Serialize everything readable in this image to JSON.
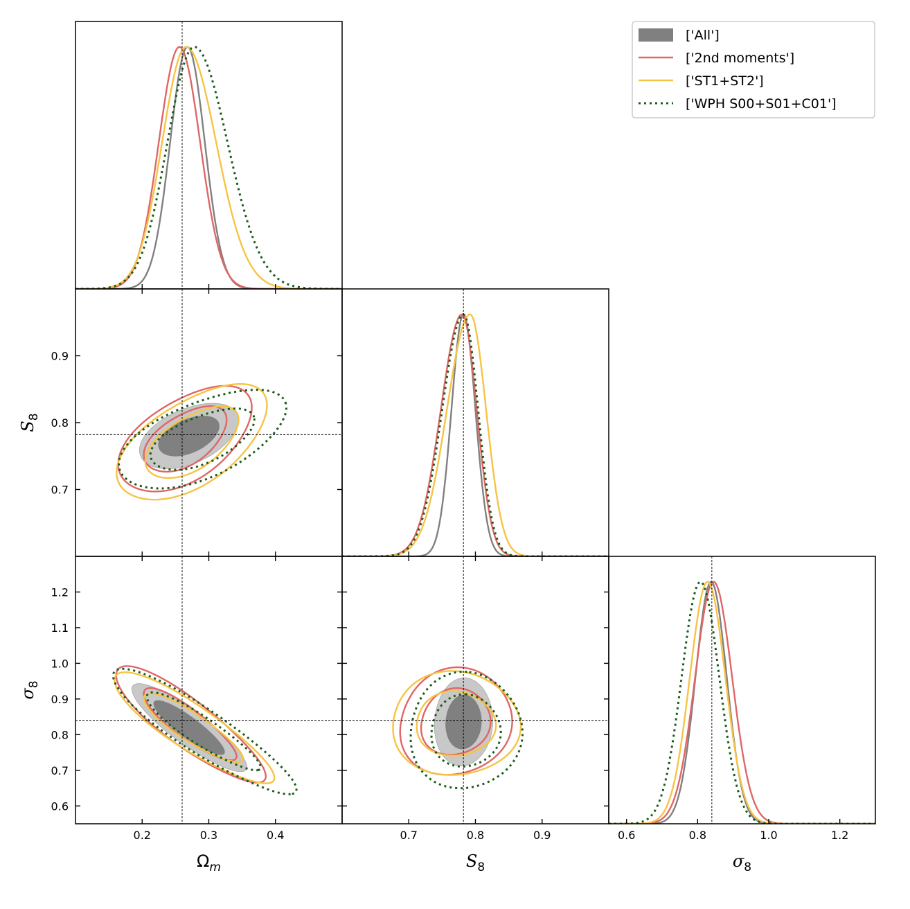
{
  "chart_data": {
    "type": "corner",
    "title": "",
    "parameters": [
      {
        "key": "Om",
        "label_main": "Ω",
        "label_sub": "m",
        "range": [
          0.1,
          0.5
        ],
        "ticks": [
          0.2,
          0.3,
          0.4
        ],
        "tick_labels": [
          "0.2",
          "0.3",
          "0.4"
        ],
        "truth": 0.26
      },
      {
        "key": "S8",
        "label_main": "S",
        "label_sub": "8",
        "range": [
          0.6,
          1.0
        ],
        "ticks": [
          0.7,
          0.8,
          0.9
        ],
        "tick_labels": [
          "0.7",
          "0.8",
          "0.9"
        ],
        "truth": 0.782
      },
      {
        "key": "sigma8",
        "label_main": "σ",
        "label_sub": "8",
        "range": [
          0.55,
          1.3
        ],
        "ticks": [
          0.6,
          0.8,
          1.0,
          1.2
        ],
        "tick_labels": [
          "0.6",
          "0.8",
          "1.0",
          "1.2"
        ],
        "y_ticks": [
          0.6,
          0.7,
          0.8,
          0.9,
          1.0,
          1.1,
          1.2
        ],
        "y_tick_labels": [
          "0.6",
          "0.7",
          "0.8",
          "0.9",
          "1.0",
          "1.1",
          "1.2"
        ],
        "truth": 0.84
      }
    ],
    "legend": {
      "placement": "top-right"
    },
    "series": [
      {
        "name": "['All']",
        "style": "filled",
        "color": "#808080",
        "color_light": "#c8c8c8",
        "marginals": {
          "Om": {
            "mean": 0.268,
            "sd": 0.026
          },
          "S8": {
            "mean": 0.782,
            "sd": 0.018
          },
          "sigma8": {
            "mean": 0.838,
            "sd": 0.044
          }
        },
        "pairs": {
          "Om_S8": {
            "center": [
              0.27,
              0.78
            ],
            "sd": [
              0.03,
              0.02
            ],
            "rho": 0.45
          },
          "Om_sigma8": {
            "center": [
              0.27,
              0.82
            ],
            "sd": [
              0.035,
              0.05
            ],
            "rho": -0.88
          },
          "S8_sigma8": {
            "center": [
              0.782,
              0.835
            ],
            "sd": [
              0.018,
              0.05
            ],
            "rho": 0.05
          }
        }
      },
      {
        "name": "['2nd moments']",
        "style": "solid",
        "color": "#e06666",
        "marginals": {
          "Om": {
            "mean": 0.256,
            "sd": 0.031
          },
          "S8": {
            "mean": 0.78,
            "sd": 0.022
          },
          "sigma8": {
            "mean": 0.845,
            "sd": 0.052
          }
        },
        "pairs": {
          "Om_S8": {
            "center": [
              0.265,
              0.775
            ],
            "sd": [
              0.04,
              0.032
            ],
            "rho": 0.5
          },
          "Om_sigma8": {
            "center": [
              0.27,
              0.83
            ],
            "sd": [
              0.045,
              0.065
            ],
            "rho": -0.86
          },
          "S8_sigma8": {
            "center": [
              0.77,
              0.835
            ],
            "sd": [
              0.035,
              0.06
            ],
            "rho": 0.08
          }
        }
      },
      {
        "name": "['ST1+ST2']",
        "style": "solid",
        "color": "#f6c444",
        "marginals": {
          "Om": {
            "mean": 0.266,
            "sd": 0.036
          },
          "S8": {
            "mean": 0.792,
            "sd": 0.024
          },
          "sigma8": {
            "mean": 0.828,
            "sd": 0.05
          }
        },
        "pairs": {
          "Om_S8": {
            "center": [
              0.275,
              0.77
            ],
            "sd": [
              0.045,
              0.035
            ],
            "rho": 0.55
          },
          "Om_sigma8": {
            "center": [
              0.275,
              0.82
            ],
            "sd": [
              0.048,
              0.062
            ],
            "rho": -0.87
          },
          "S8_sigma8": {
            "center": [
              0.77,
              0.83
            ],
            "sd": [
              0.04,
              0.058
            ],
            "rho": 0.0
          }
        }
      },
      {
        "name": "['WPH S00+S01+C01']",
        "style": "dotted",
        "color": "#1a5c1a",
        "marginals": {
          "Om": {
            "mean": 0.278,
            "sd": 0.04
          },
          "S8": {
            "mean": 0.782,
            "sd": 0.022
          },
          "sigma8": {
            "mean": 0.808,
            "sd": 0.053
          }
        },
        "pairs": {
          "Om_S8": {
            "center": [
              0.29,
              0.775
            ],
            "sd": [
              0.05,
              0.03
            ],
            "rho": 0.55
          },
          "Om_sigma8": {
            "center": [
              0.29,
              0.81
            ],
            "sd": [
              0.055,
              0.07
            ],
            "rho": -0.9
          },
          "S8_sigma8": {
            "center": [
              0.785,
              0.81
            ],
            "sd": [
              0.035,
              0.065
            ],
            "rho": 0.02
          }
        }
      }
    ]
  }
}
